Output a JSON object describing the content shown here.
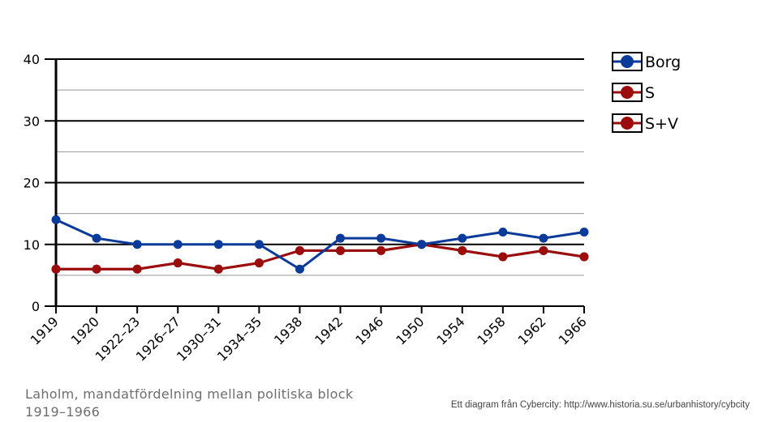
{
  "chart_data": {
    "type": "line",
    "categories": [
      "1919",
      "1920",
      "1922–23",
      "1926–27",
      "1930–31",
      "1934–35",
      "1938",
      "1942",
      "1946",
      "1950",
      "1954",
      "1958",
      "1962",
      "1966"
    ],
    "series": [
      {
        "name": "Borg",
        "color": "#0a3a9a",
        "values": [
          14,
          11,
          10,
          10,
          10,
          10,
          6,
          11,
          11,
          10,
          11,
          12,
          11,
          12
        ]
      },
      {
        "name": "S",
        "color": "#9b0c0c",
        "values": [
          6,
          6,
          6,
          7,
          6,
          7,
          9,
          9,
          9,
          10,
          9,
          8,
          9,
          8
        ]
      },
      {
        "name": "S+V",
        "color": "#9b0c0c",
        "values": [
          6,
          6,
          6,
          7,
          6,
          7,
          9,
          9,
          9,
          10,
          9,
          8,
          9,
          8
        ]
      }
    ],
    "ylim": [
      0,
      40
    ],
    "yticks": [
      0,
      10,
      20,
      30,
      40
    ],
    "minor_yticks": [
      5,
      15,
      25,
      35
    ],
    "grid": true,
    "legend": "top-right"
  },
  "caption": "Laholm, mandatfördelning mellan politiska block 1919–1966",
  "credit": "Ett diagram från Cybercity: http://www.historia.su.se/urbanhistory/cybcity"
}
